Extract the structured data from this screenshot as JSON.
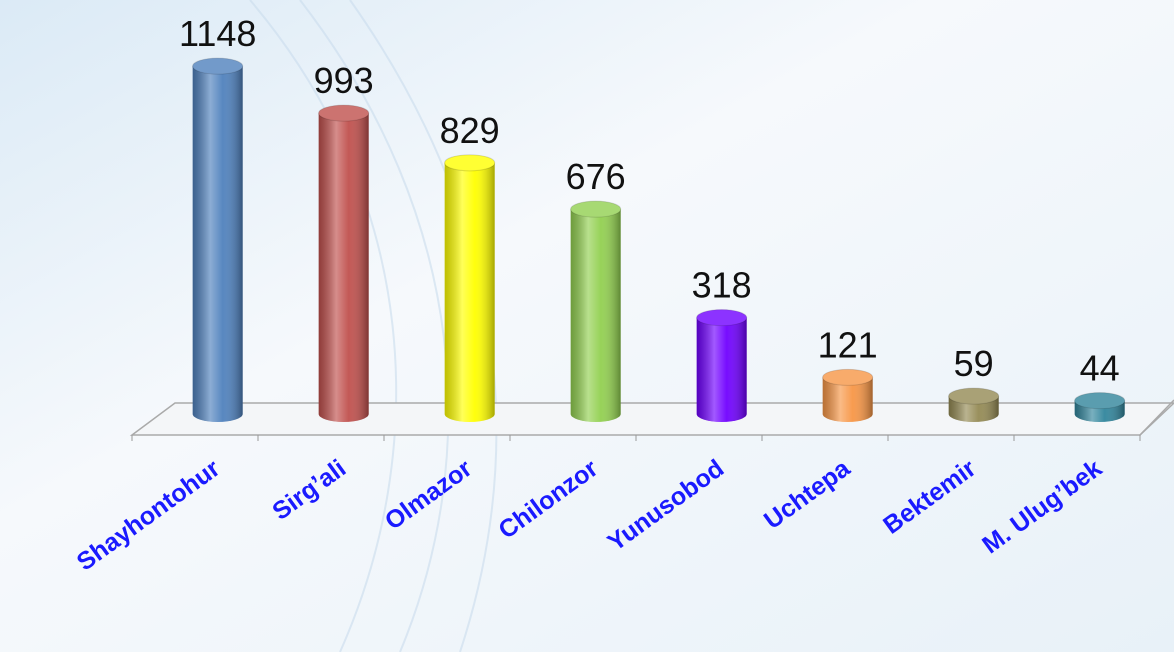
{
  "chart_data": {
    "type": "bar",
    "categories": [
      "Shayhontohur",
      "Sirg’ali",
      "Olmazor",
      "Chilonzor",
      "Yunusobod",
      "Uchtepa",
      "Bektemir",
      "M. Ulug’bek"
    ],
    "values": [
      1148,
      993,
      829,
      676,
      318,
      121,
      59,
      44
    ],
    "colors": [
      "#4f81bd",
      "#c0504d",
      "#ffff00",
      "#92d050",
      "#7000ff",
      "#f79646",
      "#948a54",
      "#31859c"
    ],
    "label_color": "#1a1aff"
  }
}
